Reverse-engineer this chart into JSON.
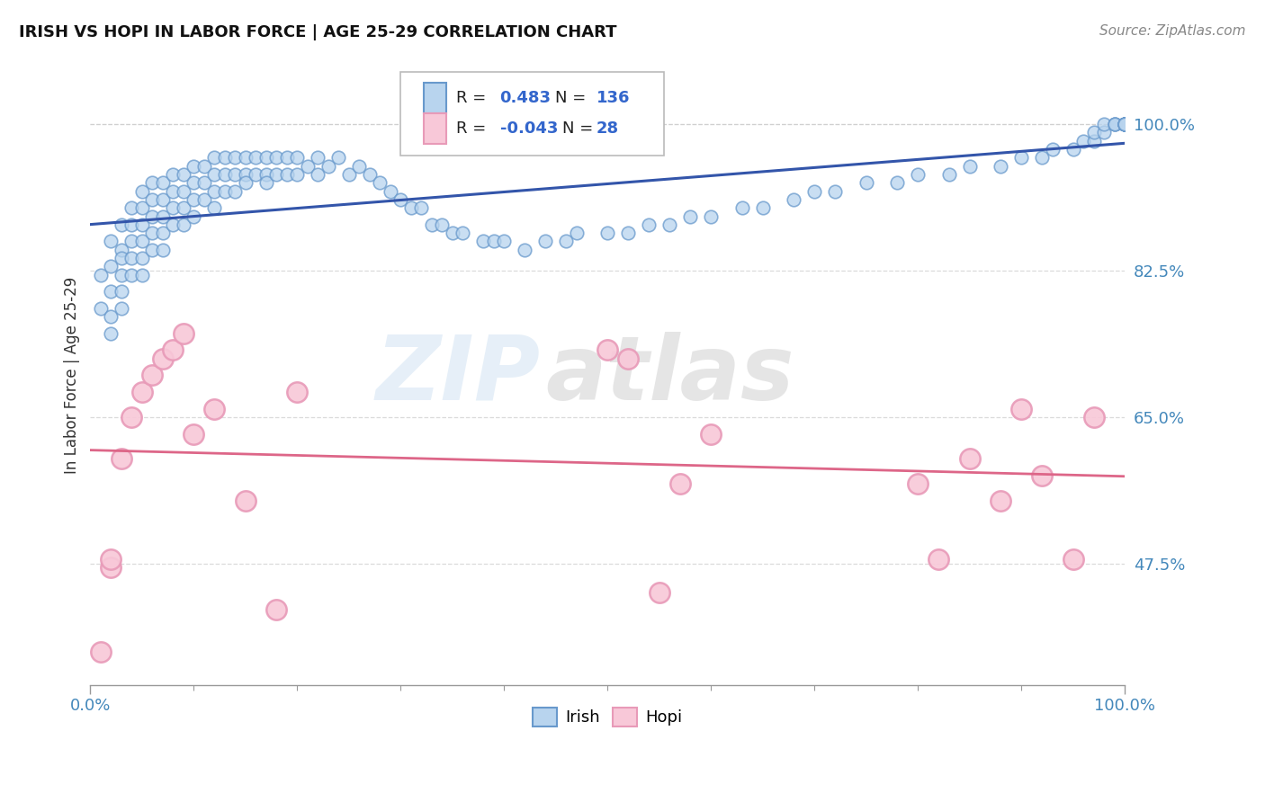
{
  "title": "IRISH VS HOPI IN LABOR FORCE | AGE 25-29 CORRELATION CHART",
  "source": "Source: ZipAtlas.com",
  "ylabel": "In Labor Force | Age 25-29",
  "xlim": [
    0.0,
    1.0
  ],
  "ylim": [
    0.33,
    1.07
  ],
  "yticks": [
    0.475,
    0.65,
    0.825,
    1.0
  ],
  "ytick_labels": [
    "47.5%",
    "65.0%",
    "82.5%",
    "100.0%"
  ],
  "xtick_labels": [
    "0.0%",
    "100.0%"
  ],
  "irish_color": "#b8d4ee",
  "irish_edge_color": "#6899cc",
  "hopi_color": "#f8c8d8",
  "hopi_edge_color": "#e89ab8",
  "irish_line_color": "#3355aa",
  "hopi_line_color": "#dd6688",
  "irish_R": 0.483,
  "irish_N": 136,
  "hopi_R": -0.043,
  "hopi_N": 28,
  "watermark_text": "ZIP",
  "watermark_text2": "atlas",
  "background_color": "#ffffff",
  "grid_color": "#cccccc",
  "irish_x_values": [
    0.01,
    0.01,
    0.02,
    0.02,
    0.02,
    0.02,
    0.02,
    0.03,
    0.03,
    0.03,
    0.03,
    0.03,
    0.03,
    0.04,
    0.04,
    0.04,
    0.04,
    0.04,
    0.05,
    0.05,
    0.05,
    0.05,
    0.05,
    0.05,
    0.06,
    0.06,
    0.06,
    0.06,
    0.06,
    0.07,
    0.07,
    0.07,
    0.07,
    0.07,
    0.08,
    0.08,
    0.08,
    0.08,
    0.09,
    0.09,
    0.09,
    0.09,
    0.1,
    0.1,
    0.1,
    0.1,
    0.11,
    0.11,
    0.11,
    0.12,
    0.12,
    0.12,
    0.12,
    0.13,
    0.13,
    0.13,
    0.14,
    0.14,
    0.14,
    0.15,
    0.15,
    0.15,
    0.16,
    0.16,
    0.17,
    0.17,
    0.17,
    0.18,
    0.18,
    0.19,
    0.19,
    0.2,
    0.2,
    0.21,
    0.22,
    0.22,
    0.23,
    0.24,
    0.25,
    0.26,
    0.27,
    0.28,
    0.29,
    0.3,
    0.31,
    0.32,
    0.33,
    0.34,
    0.35,
    0.36,
    0.38,
    0.39,
    0.4,
    0.42,
    0.44,
    0.46,
    0.47,
    0.5,
    0.52,
    0.54,
    0.56,
    0.58,
    0.6,
    0.63,
    0.65,
    0.68,
    0.7,
    0.72,
    0.75,
    0.78,
    0.8,
    0.83,
    0.85,
    0.88,
    0.9,
    0.92,
    0.93,
    0.95,
    0.96,
    0.97,
    0.97,
    0.98,
    0.98,
    0.99,
    0.99,
    0.99,
    1.0,
    1.0,
    1.0,
    1.0,
    1.0,
    1.0,
    1.0,
    1.0,
    1.0,
    1.0
  ],
  "irish_y_values": [
    0.82,
    0.78,
    0.86,
    0.83,
    0.8,
    0.77,
    0.75,
    0.88,
    0.85,
    0.84,
    0.82,
    0.8,
    0.78,
    0.9,
    0.88,
    0.86,
    0.84,
    0.82,
    0.92,
    0.9,
    0.88,
    0.86,
    0.84,
    0.82,
    0.93,
    0.91,
    0.89,
    0.87,
    0.85,
    0.93,
    0.91,
    0.89,
    0.87,
    0.85,
    0.94,
    0.92,
    0.9,
    0.88,
    0.94,
    0.92,
    0.9,
    0.88,
    0.95,
    0.93,
    0.91,
    0.89,
    0.95,
    0.93,
    0.91,
    0.96,
    0.94,
    0.92,
    0.9,
    0.96,
    0.94,
    0.92,
    0.96,
    0.94,
    0.92,
    0.96,
    0.94,
    0.93,
    0.96,
    0.94,
    0.96,
    0.94,
    0.93,
    0.96,
    0.94,
    0.96,
    0.94,
    0.96,
    0.94,
    0.95,
    0.96,
    0.94,
    0.95,
    0.96,
    0.94,
    0.95,
    0.94,
    0.93,
    0.92,
    0.91,
    0.9,
    0.9,
    0.88,
    0.88,
    0.87,
    0.87,
    0.86,
    0.86,
    0.86,
    0.85,
    0.86,
    0.86,
    0.87,
    0.87,
    0.87,
    0.88,
    0.88,
    0.89,
    0.89,
    0.9,
    0.9,
    0.91,
    0.92,
    0.92,
    0.93,
    0.93,
    0.94,
    0.94,
    0.95,
    0.95,
    0.96,
    0.96,
    0.97,
    0.97,
    0.98,
    0.98,
    0.99,
    0.99,
    1.0,
    1.0,
    1.0,
    1.0,
    1.0,
    1.0,
    1.0,
    1.0,
    1.0,
    1.0,
    1.0,
    1.0,
    1.0,
    1.0
  ],
  "hopi_x_values": [
    0.01,
    0.02,
    0.02,
    0.03,
    0.04,
    0.05,
    0.06,
    0.07,
    0.08,
    0.09,
    0.1,
    0.12,
    0.15,
    0.18,
    0.2,
    0.5,
    0.52,
    0.55,
    0.57,
    0.6,
    0.8,
    0.82,
    0.85,
    0.88,
    0.9,
    0.92,
    0.95,
    0.97
  ],
  "hopi_y_values": [
    0.37,
    0.47,
    0.48,
    0.6,
    0.65,
    0.68,
    0.7,
    0.72,
    0.73,
    0.75,
    0.63,
    0.66,
    0.55,
    0.42,
    0.68,
    0.73,
    0.72,
    0.44,
    0.57,
    0.63,
    0.57,
    0.48,
    0.6,
    0.55,
    0.66,
    0.58,
    0.48,
    0.65
  ]
}
